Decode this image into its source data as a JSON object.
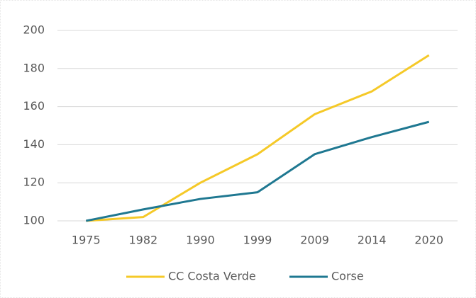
{
  "chart_data": {
    "type": "line",
    "categories": [
      "1975",
      "1982",
      "1990",
      "1999",
      "2009",
      "2014",
      "2020"
    ],
    "series": [
      {
        "name": "CC Costa Verde",
        "color": "#f5c928",
        "values": [
          100,
          102,
          120,
          135,
          156,
          168,
          187
        ]
      },
      {
        "name": "Corse",
        "color": "#1f7891",
        "values": [
          100,
          106,
          111.5,
          115,
          135,
          144,
          152
        ]
      }
    ],
    "ylim": [
      100,
      200
    ],
    "yticks": [
      100,
      120,
      140,
      160,
      180,
      200
    ],
    "grid": true,
    "legend": "bottom"
  }
}
